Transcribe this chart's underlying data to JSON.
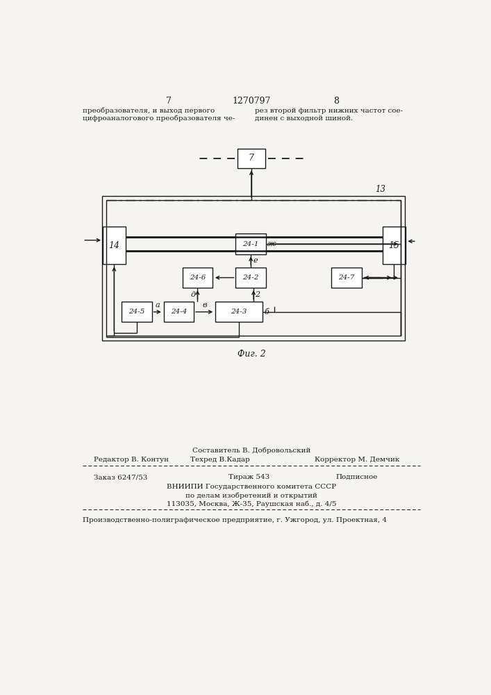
{
  "bg_color": "#f5f4f0",
  "black": "#1a1a1a",
  "page_num_left": "7",
  "page_num_center": "1270797",
  "page_num_right": "8",
  "text_left_line1": "преобразователя, и выход первого",
  "text_left_line2": "цифроаналогового преобразователя че-",
  "text_right_line1": "рез второй фильтр нижних частот сое-",
  "text_right_line2": "динен с выходной шиной.",
  "fig_label": "Фиг. 2",
  "staff_line1": "Составитель В. Добровольский",
  "staff_editor": "Редактор В. Контун",
  "staff_tech": "Техред В.Кадар",
  "staff_corr": "Корректор М. Демчик",
  "order_text": "Заказ 6247/53",
  "tirazh": "Тираж 543",
  "podp": "Подписное",
  "vniip1": "ВНИИПИ Государственного комитета СССР",
  "vniip2": "по делам изобретений и открытий",
  "vniip3": "113035, Москва, Ж-35, Раушская наб., д. 4/5",
  "bottom_line": "Производственно-полиграфическое предприятие, г. Ужгород, ул. Проектная, 4"
}
